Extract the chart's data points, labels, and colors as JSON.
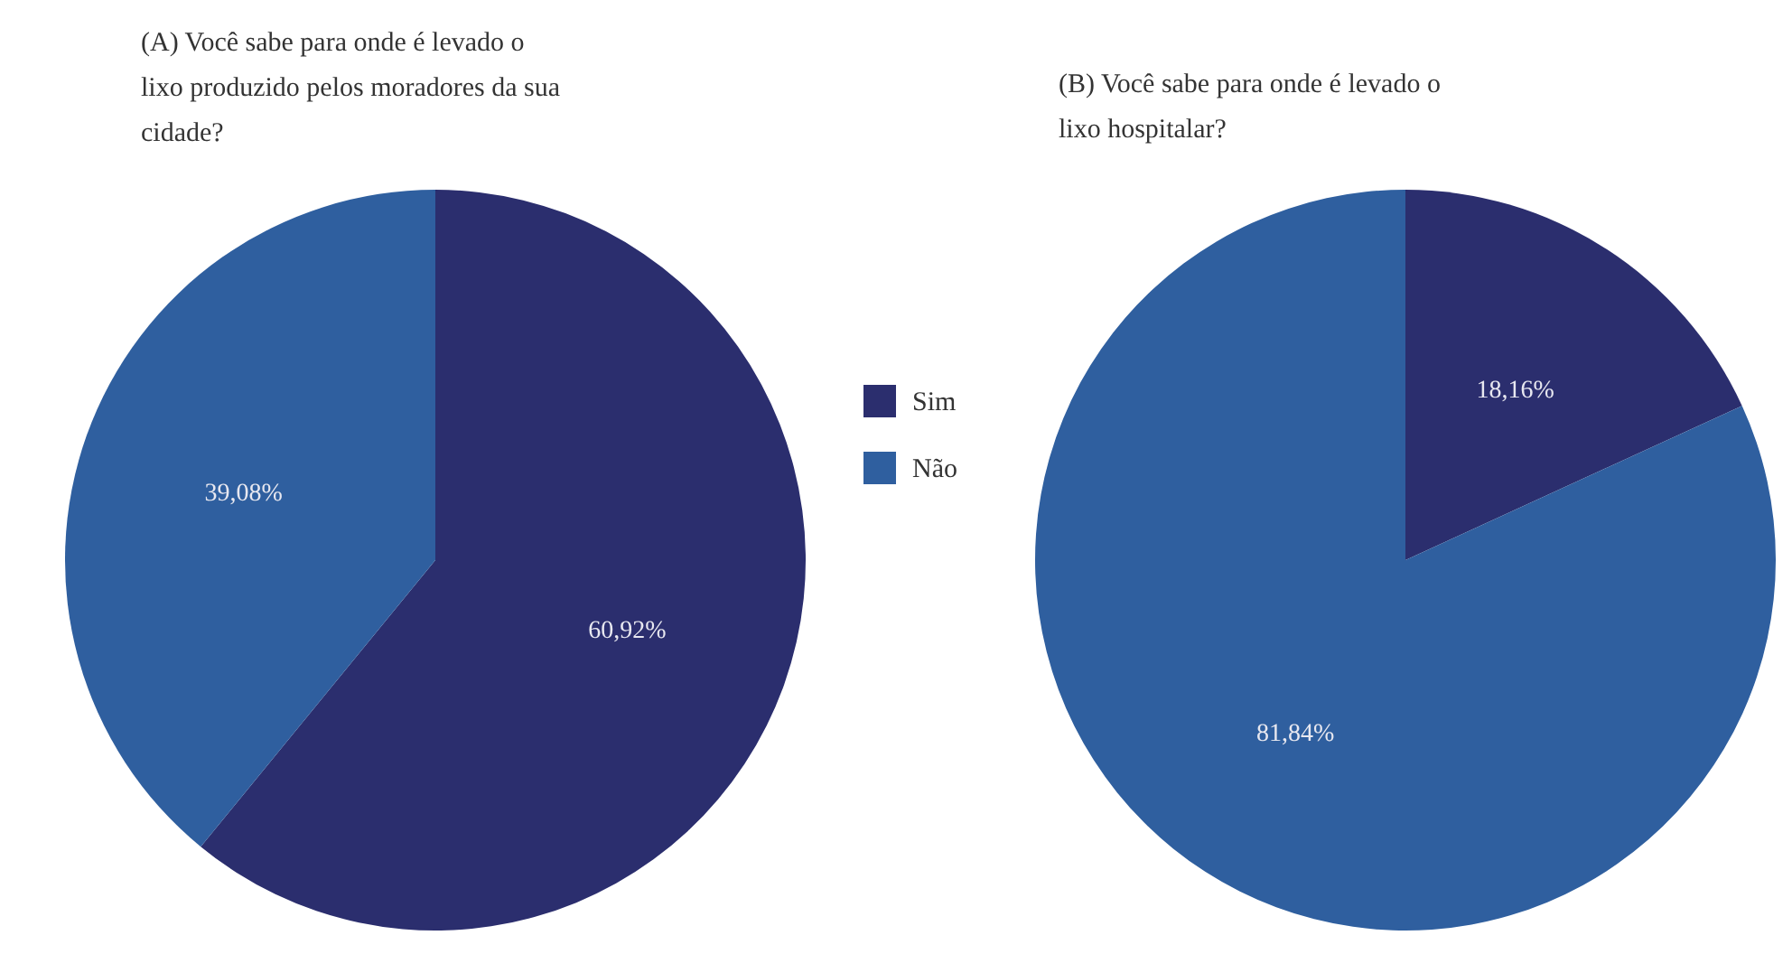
{
  "chart_data": [
    {
      "type": "pie",
      "title": "(A) Você sabe para onde é levado o lixo produzido pelos moradores da sua cidade?",
      "categories": [
        "Sim",
        "Não"
      ],
      "values": [
        60.92,
        39.08
      ],
      "colors": [
        "#2b2e6e",
        "#2f5f9f"
      ],
      "value_labels": [
        "60,92%",
        "39,08%"
      ],
      "legend": "right"
    },
    {
      "type": "pie",
      "title": "(B) Você sabe para onde é levado o lixo hospitalar?",
      "categories": [
        null,
        null
      ],
      "values": [
        18.16,
        81.84
      ],
      "colors": [
        "#2b2e6e",
        "#2f5f9f"
      ],
      "value_labels": [
        "18,16%",
        "81,84%"
      ]
    }
  ]
}
